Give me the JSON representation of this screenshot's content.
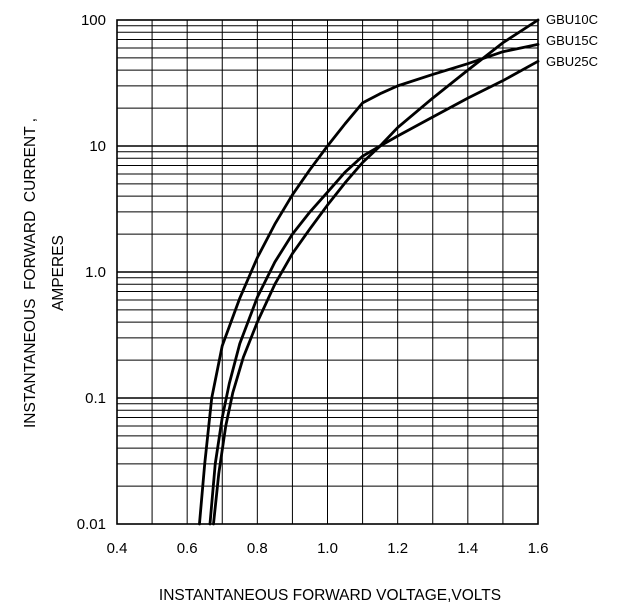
{
  "chart_data": {
    "type": "line",
    "title": "",
    "xlabel": "INSTANTANEOUS FORWARD VOLTAGE,VOLTS",
    "ylabel_line1": "INSTANTANEOUS  FORWARD  CURRENT ,",
    "ylabel_line2": "AMPERES",
    "xlim": [
      0.4,
      1.6
    ],
    "ylim": [
      0.01,
      100
    ],
    "yscale": "log",
    "grid": true,
    "x_ticks": [
      "0.4",
      "0.6",
      "0.8",
      "1.0",
      "1.2",
      "1.4",
      "1.6"
    ],
    "y_ticks": [
      "0.01",
      "0.1",
      "1.0",
      "10",
      "100"
    ],
    "legend": "series labels at right end of curves",
    "series": [
      {
        "name": "GBU15C",
        "x": [
          0.635,
          0.65,
          0.67,
          0.7,
          0.75,
          0.8,
          0.85,
          0.9,
          0.95,
          1.0,
          1.05,
          1.1,
          1.15,
          1.2,
          1.3,
          1.4,
          1.5,
          1.6
        ],
        "y": [
          0.01,
          0.03,
          0.1,
          0.26,
          0.62,
          1.3,
          2.4,
          4.1,
          6.5,
          10,
          15,
          22,
          26,
          30,
          37,
          45,
          56,
          64
        ]
      },
      {
        "name": "GBU25C",
        "x": [
          0.665,
          0.68,
          0.7,
          0.72,
          0.75,
          0.8,
          0.85,
          0.9,
          0.95,
          1.0,
          1.05,
          1.1,
          1.15,
          1.2,
          1.3,
          1.4,
          1.5,
          1.6
        ],
        "y": [
          0.01,
          0.03,
          0.07,
          0.13,
          0.27,
          0.63,
          1.2,
          2.0,
          3.0,
          4.3,
          6.2,
          8.3,
          10,
          12,
          17,
          24,
          33,
          47
        ]
      },
      {
        "name": "GBU10C",
        "x": [
          0.675,
          0.69,
          0.71,
          0.73,
          0.76,
          0.8,
          0.85,
          0.9,
          0.95,
          1.0,
          1.05,
          1.1,
          1.15,
          1.2,
          1.3,
          1.4,
          1.5,
          1.6
        ],
        "y": [
          0.01,
          0.025,
          0.06,
          0.11,
          0.21,
          0.4,
          0.8,
          1.4,
          2.2,
          3.4,
          5.1,
          7.4,
          10,
          14,
          24,
          40,
          66,
          100
        ]
      }
    ],
    "colors": {
      "line": "#000000",
      "grid": "#000000",
      "background": "#ffffff"
    }
  }
}
